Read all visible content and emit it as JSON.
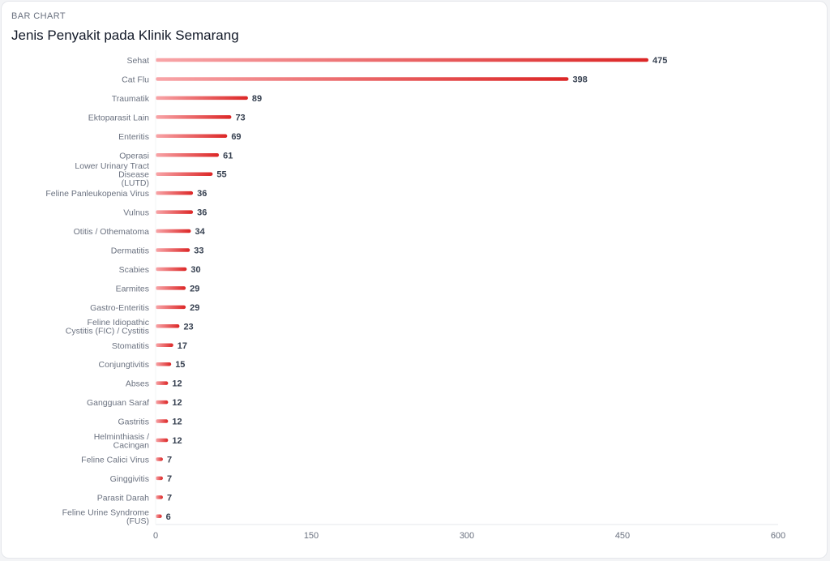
{
  "header": {
    "kicker": "BAR CHART",
    "title": "Jenis Penyakit pada Klinik Semarang"
  },
  "colors": {
    "bar_start": "#f8a5a8",
    "bar_end": "#dc2626",
    "axis": "#e5e7eb"
  },
  "chart_data": {
    "type": "bar",
    "orientation": "horizontal",
    "title": "Jenis Penyakit pada Klinik Semarang",
    "xlim": [
      0,
      600
    ],
    "xticks": [
      0,
      150,
      300,
      450,
      600
    ],
    "grid": false,
    "categories": [
      [
        "Sehat"
      ],
      [
        "Cat Flu"
      ],
      [
        "Traumatik"
      ],
      [
        "Ektoparasit Lain"
      ],
      [
        "Enteritis"
      ],
      [
        "Operasi"
      ],
      [
        "Lower Urinary Tract",
        "Disease",
        "(LUTD)"
      ],
      [
        "Feline Panleukopenia Virus"
      ],
      [
        "Vulnus"
      ],
      [
        "Otitis / Othematoma"
      ],
      [
        "Dermatitis"
      ],
      [
        "Scabies"
      ],
      [
        "Earmites"
      ],
      [
        "Gastro-Enteritis"
      ],
      [
        "Feline Idiopathic",
        "Cystitis (FIC) / Cystitis"
      ],
      [
        "Stomatitis"
      ],
      [
        "Conjungtivitis"
      ],
      [
        "Abses"
      ],
      [
        "Gangguan Saraf"
      ],
      [
        "Gastritis"
      ],
      [
        "Helminthiasis /",
        "Cacingan"
      ],
      [
        "Feline Calici Virus"
      ],
      [
        "Ginggivitis"
      ],
      [
        "Parasit Darah"
      ],
      [
        "Feline Urine Syndrome",
        "(FUS)"
      ]
    ],
    "values": [
      475,
      398,
      89,
      73,
      69,
      61,
      55,
      36,
      36,
      34,
      33,
      30,
      29,
      29,
      23,
      17,
      15,
      12,
      12,
      12,
      12,
      7,
      7,
      7,
      6
    ]
  }
}
